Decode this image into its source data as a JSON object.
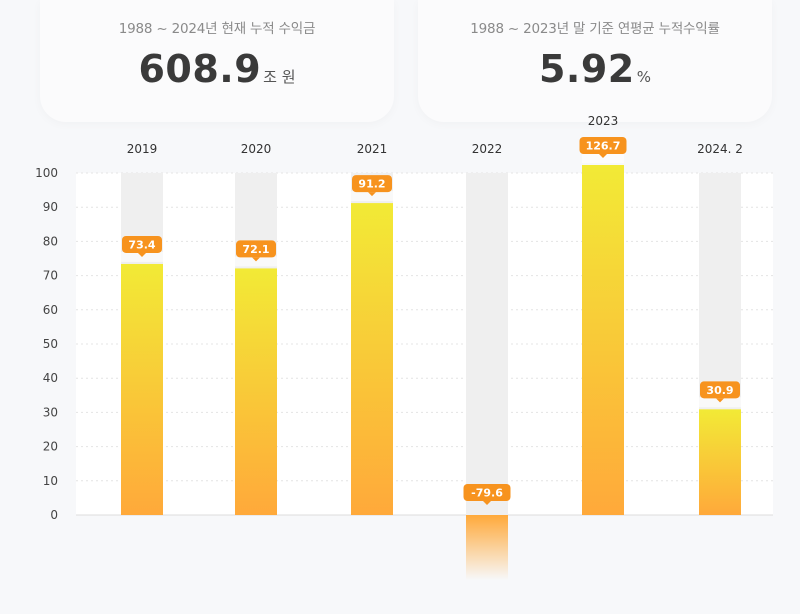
{
  "stats": [
    {
      "label": "1988 ~ 2024년 현재 누적 수익금",
      "value": "608.9",
      "unit": "조 원"
    },
    {
      "label": "1988 ~ 2023년 말 기준 연평균 누적수익률",
      "value": "5.92",
      "unit": "%"
    }
  ],
  "chart_data": {
    "type": "bar",
    "categories": [
      "2019",
      "2020",
      "2021",
      "2022",
      "2023",
      "2024. 2"
    ],
    "values": [
      73.4,
      72.1,
      91.2,
      -79.6,
      126.7,
      30.9
    ],
    "value_labels": [
      "73.4",
      "72.1",
      "91.2",
      "-79.6",
      "126.7",
      "30.9"
    ],
    "yticks": [
      0,
      10,
      20,
      30,
      40,
      50,
      60,
      70,
      80,
      90,
      100
    ],
    "ylim": [
      0,
      100
    ],
    "grid": true,
    "colors": {
      "bar_top": "#f2ea36",
      "bar_bottom": "#ffa93a",
      "badge": "#f7931e",
      "track": "#efefef"
    }
  }
}
